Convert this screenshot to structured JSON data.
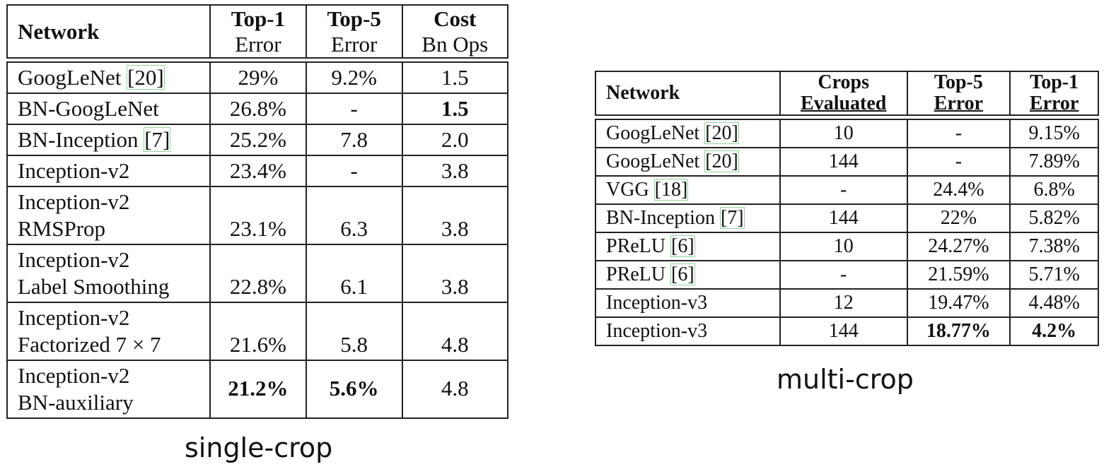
{
  "single_crop": {
    "caption": "single-crop",
    "headers": [
      {
        "top": "Network",
        "bottom": ""
      },
      {
        "top": "Top-1",
        "bottom": "Error"
      },
      {
        "top": "Top-5",
        "bottom": "Error"
      },
      {
        "top": "Cost",
        "bottom": "Bn Ops"
      }
    ],
    "rows": [
      {
        "network": [
          "GoogLeNet "
        ],
        "ref": "[20]",
        "top1": "29%",
        "top5": "9.2%",
        "cost": "1.5",
        "bold": []
      },
      {
        "network": [
          "BN-GoogLeNet"
        ],
        "ref": "",
        "top1": "26.8%",
        "top5": "-",
        "cost": "1.5",
        "bold": [
          "cost"
        ]
      },
      {
        "network": [
          "BN-Inception "
        ],
        "ref": "[7]",
        "top1": "25.2%",
        "top5": "7.8",
        "cost": "2.0",
        "bold": []
      },
      {
        "network": [
          "Inception-v2"
        ],
        "ref": "",
        "top1": "23.4%",
        "top5": "-",
        "cost": "3.8",
        "bold": []
      },
      {
        "network": [
          "Inception-v2",
          "RMSProp"
        ],
        "ref": "",
        "top1": "23.1%",
        "top5": "6.3",
        "cost": "3.8",
        "bold": []
      },
      {
        "network": [
          "Inception-v2",
          "Label Smoothing"
        ],
        "ref": "",
        "top1": "22.8%",
        "top5": "6.1",
        "cost": "3.8",
        "bold": []
      },
      {
        "network": [
          "Inception-v2",
          "Factorized 7 × 7"
        ],
        "ref": "",
        "top1": "21.6%",
        "top5": "5.8",
        "cost": "4.8",
        "bold": []
      },
      {
        "network": [
          "Inception-v2",
          "BN-auxiliary"
        ],
        "ref": "",
        "top1": "21.2%",
        "top5": "5.6%",
        "cost": "4.8",
        "bold": [
          "top1",
          "top5"
        ]
      }
    ]
  },
  "multi_crop": {
    "caption": "multi-crop",
    "headers": [
      {
        "top": "Network",
        "bottom": ""
      },
      {
        "top": "Crops",
        "bottom": "Evaluated"
      },
      {
        "top": "Top-5",
        "bottom": "Error"
      },
      {
        "top": "Top-1",
        "bottom": "Error"
      }
    ],
    "rows": [
      {
        "network": "GoogLeNet ",
        "ref": "[20]",
        "crops": "10",
        "top5": "-",
        "top1": "9.15%",
        "bold": []
      },
      {
        "network": "GoogLeNet ",
        "ref": "[20]",
        "crops": "144",
        "top5": "-",
        "top1": "7.89%",
        "bold": []
      },
      {
        "network": "VGG ",
        "ref": "[18]",
        "crops": "-",
        "top5": "24.4%",
        "top1": "6.8%",
        "bold": []
      },
      {
        "network": "BN-Inception ",
        "ref": "[7]",
        "crops": "144",
        "top5": "22%",
        "top1": "5.82%",
        "bold": []
      },
      {
        "network": "PReLU ",
        "ref": "[6]",
        "crops": "10",
        "top5": "24.27%",
        "top1": "7.38%",
        "bold": []
      },
      {
        "network": "PReLU ",
        "ref": "[6]",
        "crops": "-",
        "top5": "21.59%",
        "top1": "5.71%",
        "bold": []
      },
      {
        "network": "Inception-v3",
        "ref": "",
        "crops": "12",
        "top5": "19.47%",
        "top1": "4.48%",
        "bold": []
      },
      {
        "network": "Inception-v3",
        "ref": "",
        "crops": "144",
        "top5": "18.77%",
        "top1": "4.2%",
        "bold": [
          "top5",
          "top1"
        ]
      }
    ]
  }
}
